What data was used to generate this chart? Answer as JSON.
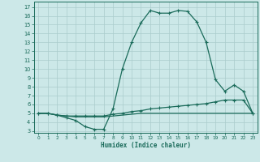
{
  "title": "",
  "xlabel": "Humidex (Indice chaleur)",
  "bg_color": "#cce8e8",
  "line_color": "#1a6b5a",
  "grid_color": "#aacccc",
  "xlim": [
    -0.5,
    23.5
  ],
  "ylim": [
    2.8,
    17.6
  ],
  "xticks": [
    0,
    1,
    2,
    3,
    4,
    5,
    6,
    7,
    8,
    9,
    10,
    11,
    12,
    13,
    14,
    15,
    16,
    17,
    18,
    19,
    20,
    21,
    22,
    23
  ],
  "yticks": [
    3,
    4,
    5,
    6,
    7,
    8,
    9,
    10,
    11,
    12,
    13,
    14,
    15,
    16,
    17
  ],
  "curve1": [
    5.0,
    5.0,
    4.8,
    4.5,
    4.2,
    3.5,
    3.2,
    3.2,
    5.5,
    10.0,
    13.0,
    15.2,
    16.6,
    16.3,
    16.3,
    16.6,
    16.5,
    15.3,
    13.0,
    8.8,
    7.5,
    8.2,
    7.5,
    5.0
  ],
  "curve2": [
    5.0,
    5.0,
    4.8,
    4.7,
    4.7,
    4.7,
    4.7,
    4.7,
    4.9,
    5.0,
    5.2,
    5.3,
    5.5,
    5.6,
    5.7,
    5.8,
    5.9,
    6.0,
    6.1,
    6.3,
    6.5,
    6.5,
    6.5,
    5.0
  ],
  "curve3": [
    5.0,
    5.0,
    4.8,
    4.7,
    4.6,
    4.6,
    4.6,
    4.6,
    4.7,
    4.8,
    4.9,
    5.0,
    5.0,
    5.0,
    5.0,
    5.0,
    5.0,
    5.0,
    5.0,
    5.0,
    5.0,
    5.0,
    5.0,
    5.0
  ]
}
